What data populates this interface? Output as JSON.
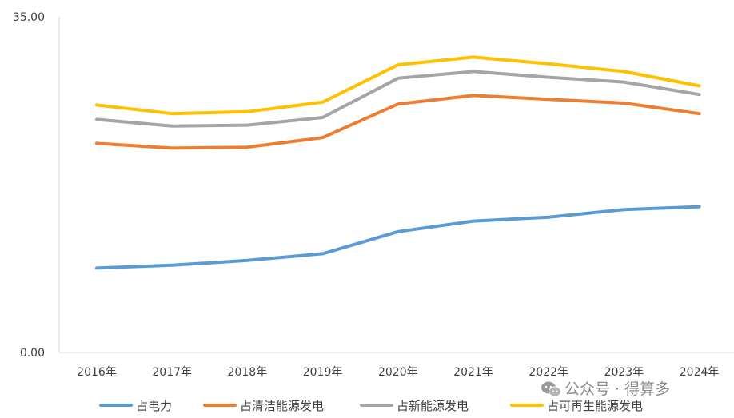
{
  "chart_data": {
    "type": "line",
    "categories": [
      "2016年",
      "2017年",
      "2018年",
      "2019年",
      "2020年",
      "2021年",
      "2022年",
      "2023年",
      "2024年"
    ],
    "series": [
      {
        "name": "占电力",
        "color": "#5B9BD5",
        "values": [
          8.8,
          9.1,
          9.6,
          10.3,
          12.6,
          13.7,
          14.1,
          14.9,
          15.2
        ]
      },
      {
        "name": "占清洁能源发电",
        "color": "#ED7D31",
        "values": [
          21.8,
          21.3,
          21.4,
          22.4,
          25.9,
          26.8,
          26.4,
          26.0,
          24.9
        ]
      },
      {
        "name": "占新能源发电",
        "color": "#A5A5A5",
        "values": [
          24.3,
          23.6,
          23.7,
          24.5,
          28.6,
          29.3,
          28.7,
          28.2,
          26.9
        ]
      },
      {
        "name": "占可再生能源发电",
        "color": "#FFC000",
        "values": [
          25.8,
          24.9,
          25.1,
          26.1,
          30.0,
          30.8,
          30.1,
          29.3,
          27.8
        ]
      }
    ],
    "ylim": [
      0,
      35
    ],
    "ytick_labels": [
      "0.00",
      "35.00"
    ],
    "grid": false,
    "legend_position": "bottom",
    "title": "",
    "xlabel": "",
    "ylabel": ""
  },
  "watermark": {
    "icon": "wechat-icon",
    "text": "公众号 · 得算多"
  }
}
